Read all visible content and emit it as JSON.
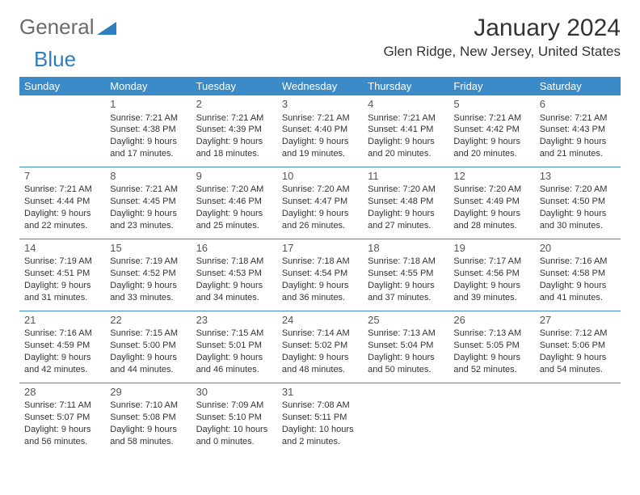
{
  "brand": {
    "part1": "General",
    "part2": "Blue"
  },
  "title": "January 2024",
  "location": "Glen Ridge, New Jersey, United States",
  "colors": {
    "header_bg": "#3b8bc9",
    "header_text": "#ffffff",
    "row_border": "#3b8bc9",
    "text": "#333333",
    "brand_gray": "#6b6b6b",
    "brand_blue": "#2d7fc1"
  },
  "dayHeaders": [
    "Sunday",
    "Monday",
    "Tuesday",
    "Wednesday",
    "Thursday",
    "Friday",
    "Saturday"
  ],
  "weeks": [
    [
      null,
      {
        "n": "1",
        "sr": "Sunrise: 7:21 AM",
        "ss": "Sunset: 4:38 PM",
        "dl1": "Daylight: 9 hours",
        "dl2": "and 17 minutes."
      },
      {
        "n": "2",
        "sr": "Sunrise: 7:21 AM",
        "ss": "Sunset: 4:39 PM",
        "dl1": "Daylight: 9 hours",
        "dl2": "and 18 minutes."
      },
      {
        "n": "3",
        "sr": "Sunrise: 7:21 AM",
        "ss": "Sunset: 4:40 PM",
        "dl1": "Daylight: 9 hours",
        "dl2": "and 19 minutes."
      },
      {
        "n": "4",
        "sr": "Sunrise: 7:21 AM",
        "ss": "Sunset: 4:41 PM",
        "dl1": "Daylight: 9 hours",
        "dl2": "and 20 minutes."
      },
      {
        "n": "5",
        "sr": "Sunrise: 7:21 AM",
        "ss": "Sunset: 4:42 PM",
        "dl1": "Daylight: 9 hours",
        "dl2": "and 20 minutes."
      },
      {
        "n": "6",
        "sr": "Sunrise: 7:21 AM",
        "ss": "Sunset: 4:43 PM",
        "dl1": "Daylight: 9 hours",
        "dl2": "and 21 minutes."
      }
    ],
    [
      {
        "n": "7",
        "sr": "Sunrise: 7:21 AM",
        "ss": "Sunset: 4:44 PM",
        "dl1": "Daylight: 9 hours",
        "dl2": "and 22 minutes."
      },
      {
        "n": "8",
        "sr": "Sunrise: 7:21 AM",
        "ss": "Sunset: 4:45 PM",
        "dl1": "Daylight: 9 hours",
        "dl2": "and 23 minutes."
      },
      {
        "n": "9",
        "sr": "Sunrise: 7:20 AM",
        "ss": "Sunset: 4:46 PM",
        "dl1": "Daylight: 9 hours",
        "dl2": "and 25 minutes."
      },
      {
        "n": "10",
        "sr": "Sunrise: 7:20 AM",
        "ss": "Sunset: 4:47 PM",
        "dl1": "Daylight: 9 hours",
        "dl2": "and 26 minutes."
      },
      {
        "n": "11",
        "sr": "Sunrise: 7:20 AM",
        "ss": "Sunset: 4:48 PM",
        "dl1": "Daylight: 9 hours",
        "dl2": "and 27 minutes."
      },
      {
        "n": "12",
        "sr": "Sunrise: 7:20 AM",
        "ss": "Sunset: 4:49 PM",
        "dl1": "Daylight: 9 hours",
        "dl2": "and 28 minutes."
      },
      {
        "n": "13",
        "sr": "Sunrise: 7:20 AM",
        "ss": "Sunset: 4:50 PM",
        "dl1": "Daylight: 9 hours",
        "dl2": "and 30 minutes."
      }
    ],
    [
      {
        "n": "14",
        "sr": "Sunrise: 7:19 AM",
        "ss": "Sunset: 4:51 PM",
        "dl1": "Daylight: 9 hours",
        "dl2": "and 31 minutes."
      },
      {
        "n": "15",
        "sr": "Sunrise: 7:19 AM",
        "ss": "Sunset: 4:52 PM",
        "dl1": "Daylight: 9 hours",
        "dl2": "and 33 minutes."
      },
      {
        "n": "16",
        "sr": "Sunrise: 7:18 AM",
        "ss": "Sunset: 4:53 PM",
        "dl1": "Daylight: 9 hours",
        "dl2": "and 34 minutes."
      },
      {
        "n": "17",
        "sr": "Sunrise: 7:18 AM",
        "ss": "Sunset: 4:54 PM",
        "dl1": "Daylight: 9 hours",
        "dl2": "and 36 minutes."
      },
      {
        "n": "18",
        "sr": "Sunrise: 7:18 AM",
        "ss": "Sunset: 4:55 PM",
        "dl1": "Daylight: 9 hours",
        "dl2": "and 37 minutes."
      },
      {
        "n": "19",
        "sr": "Sunrise: 7:17 AM",
        "ss": "Sunset: 4:56 PM",
        "dl1": "Daylight: 9 hours",
        "dl2": "and 39 minutes."
      },
      {
        "n": "20",
        "sr": "Sunrise: 7:16 AM",
        "ss": "Sunset: 4:58 PM",
        "dl1": "Daylight: 9 hours",
        "dl2": "and 41 minutes."
      }
    ],
    [
      {
        "n": "21",
        "sr": "Sunrise: 7:16 AM",
        "ss": "Sunset: 4:59 PM",
        "dl1": "Daylight: 9 hours",
        "dl2": "and 42 minutes."
      },
      {
        "n": "22",
        "sr": "Sunrise: 7:15 AM",
        "ss": "Sunset: 5:00 PM",
        "dl1": "Daylight: 9 hours",
        "dl2": "and 44 minutes."
      },
      {
        "n": "23",
        "sr": "Sunrise: 7:15 AM",
        "ss": "Sunset: 5:01 PM",
        "dl1": "Daylight: 9 hours",
        "dl2": "and 46 minutes."
      },
      {
        "n": "24",
        "sr": "Sunrise: 7:14 AM",
        "ss": "Sunset: 5:02 PM",
        "dl1": "Daylight: 9 hours",
        "dl2": "and 48 minutes."
      },
      {
        "n": "25",
        "sr": "Sunrise: 7:13 AM",
        "ss": "Sunset: 5:04 PM",
        "dl1": "Daylight: 9 hours",
        "dl2": "and 50 minutes."
      },
      {
        "n": "26",
        "sr": "Sunrise: 7:13 AM",
        "ss": "Sunset: 5:05 PM",
        "dl1": "Daylight: 9 hours",
        "dl2": "and 52 minutes."
      },
      {
        "n": "27",
        "sr": "Sunrise: 7:12 AM",
        "ss": "Sunset: 5:06 PM",
        "dl1": "Daylight: 9 hours",
        "dl2": "and 54 minutes."
      }
    ],
    [
      {
        "n": "28",
        "sr": "Sunrise: 7:11 AM",
        "ss": "Sunset: 5:07 PM",
        "dl1": "Daylight: 9 hours",
        "dl2": "and 56 minutes."
      },
      {
        "n": "29",
        "sr": "Sunrise: 7:10 AM",
        "ss": "Sunset: 5:08 PM",
        "dl1": "Daylight: 9 hours",
        "dl2": "and 58 minutes."
      },
      {
        "n": "30",
        "sr": "Sunrise: 7:09 AM",
        "ss": "Sunset: 5:10 PM",
        "dl1": "Daylight: 10 hours",
        "dl2": "and 0 minutes."
      },
      {
        "n": "31",
        "sr": "Sunrise: 7:08 AM",
        "ss": "Sunset: 5:11 PM",
        "dl1": "Daylight: 10 hours",
        "dl2": "and 2 minutes."
      },
      null,
      null,
      null
    ]
  ]
}
